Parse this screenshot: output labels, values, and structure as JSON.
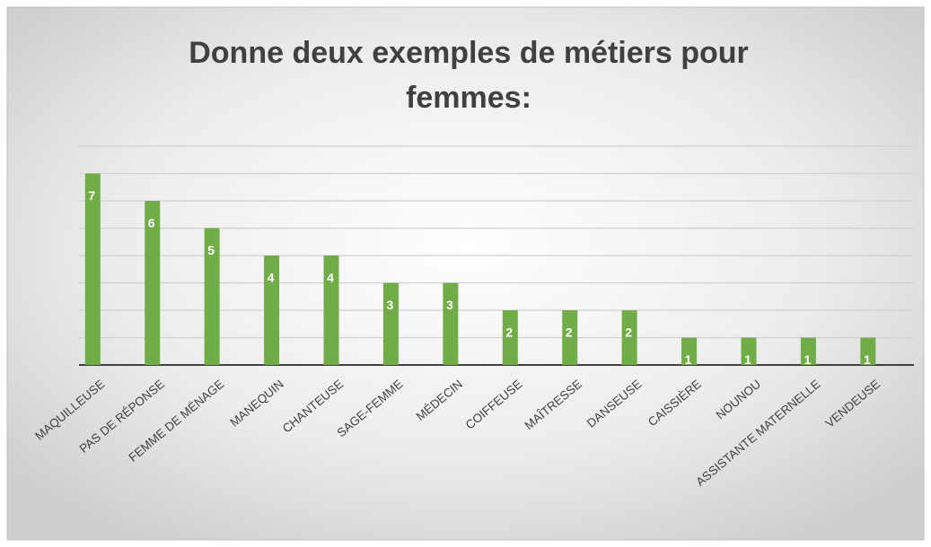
{
  "chart_data": {
    "type": "bar",
    "title_lines": [
      "Donne deux exemples de métiers pour",
      "femmes:"
    ],
    "categories": [
      "MAQUILLEUSE",
      "PAS DE RÉPONSE",
      "FEMME DE MÉNAGE",
      "MANEQUIN",
      "CHANTEUSE",
      "SAGE-FEMME",
      "MÉDECIN",
      "COIFFEUSE",
      "MAÎTRESSE",
      "DANSEUSE",
      "CAISSIÈRE",
      "NOUNOU",
      "ASSISTANTE MATERNELLE",
      "VENDEUSE"
    ],
    "values": [
      7,
      6,
      5,
      4,
      4,
      3,
      3,
      2,
      2,
      2,
      1,
      1,
      1,
      1
    ],
    "color": "#70ad47",
    "ylim": [
      0,
      8
    ],
    "yticks": [
      0,
      1,
      2,
      3,
      4,
      5,
      6,
      7,
      8
    ],
    "grid": true
  }
}
